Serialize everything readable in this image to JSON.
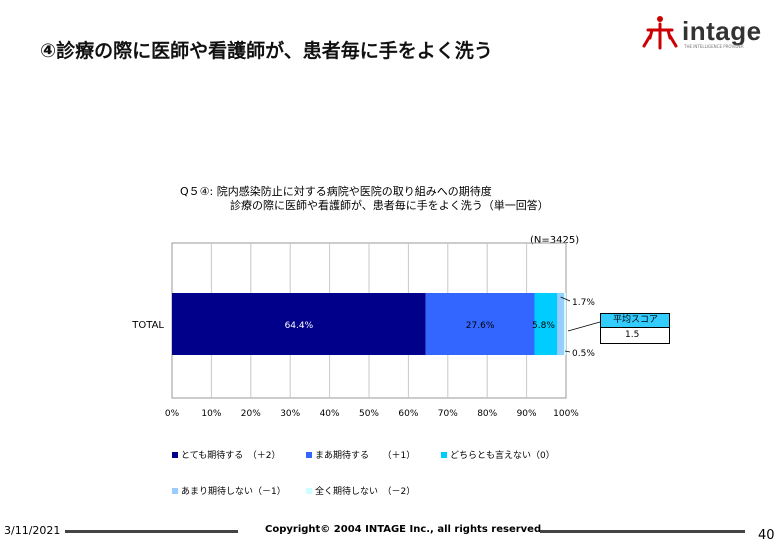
{
  "page_title": "④診療の際に医師や看護師が、患者毎に手をよく洗う",
  "logo": {
    "text": "intage",
    "sub": "THE INTELLIGENCE PROVIDER"
  },
  "question": {
    "line1": "Q５④:  院内感染防止に対する病院や医院の取り組みへの期待度",
    "line2": "診療の際に医師や看護師が、患者毎に手をよく洗う（単一回答）"
  },
  "sample_size": "(N=3425)",
  "average_score": {
    "label": "平均スコア",
    "value": "1.5"
  },
  "chart_data": {
    "type": "bar",
    "orientation": "horizontal-stacked-100",
    "categories": [
      "TOTAL"
    ],
    "series": [
      {
        "name": "とても期待する　（＋2）",
        "values": [
          64.4
        ],
        "label": "64.4%",
        "color": "#00008b"
      },
      {
        "name": "まあ期待する　　（＋1）",
        "values": [
          27.6
        ],
        "label": "27.6%",
        "color": "#3366ff"
      },
      {
        "name": "どちらとも言えない（0）",
        "values": [
          5.8
        ],
        "label": "5.8%",
        "color": "#00ccff"
      },
      {
        "name": "あまり期待しない（－1）",
        "values": [
          1.7
        ],
        "label": "1.7%",
        "color": "#99ccff"
      },
      {
        "name": "全く期待しない　（－2）",
        "values": [
          0.5
        ],
        "label": "0.5%",
        "color": "#ccffff"
      }
    ],
    "xlim": [
      0,
      100
    ],
    "x_ticks": [
      "0%",
      "10%",
      "20%",
      "30%",
      "40%",
      "50%",
      "60%",
      "70%",
      "80%",
      "90%",
      "100%"
    ],
    "grid": "vertical",
    "legend_position": "bottom"
  },
  "footer": {
    "date": "3/11/2021",
    "copyright": "Copyright© 2004 INTAGE Inc., all rights reserved.",
    "page_number": "40"
  },
  "colors": {
    "avg_header": "#33ccff",
    "logo_red": "#cc0000"
  }
}
